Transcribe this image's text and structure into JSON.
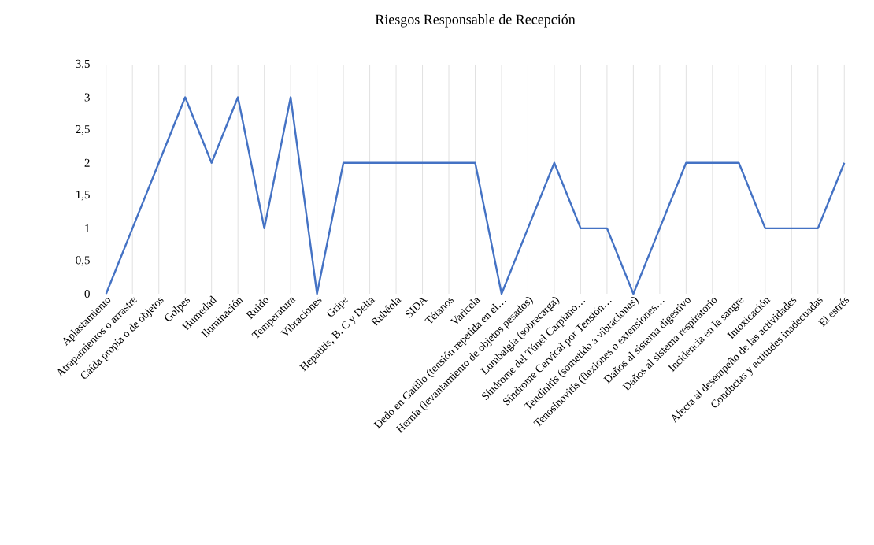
{
  "chart_data": {
    "type": "line",
    "title": "Riesgos Responsable de Recepción",
    "categories": [
      "Aplastamiento",
      "Atrapamientos o arrastre",
      "Caída propia o de objetos",
      "Golpes",
      "Humedad",
      "Iluminación",
      "Ruido",
      "Temperatura",
      "Vibraciones",
      "Gripe",
      "Hepatitis, B, C y Delta",
      "Rubéola",
      "SIDA",
      "Tétanos",
      "Varicela",
      "Dedo en Gatillo (tensión repetida en el…",
      "Hernia (levantamiento de objetos pesados)",
      "Lumbalgia (sobrecarga)",
      "Síndrome del Túnel Carpiano…",
      "Síndrome Cervical por Tensión…",
      "Tendinitis (sometido a vibraciones)",
      "Tenosinovitis (flexiones o extensiones…",
      "Daños al sistema digestivo",
      "Daños al sistema respiratorio",
      "Incidencia en la sangre",
      "Intoxicación",
      "Afecta al desempeño de las actividades",
      "Conductas y actitudes inadecuadas",
      "El estrés"
    ],
    "values": [
      0,
      1,
      2,
      3,
      2,
      3,
      1,
      3,
      0,
      2,
      2,
      2,
      2,
      2,
      2,
      0,
      1,
      2,
      1,
      1,
      0,
      1,
      2,
      2,
      2,
      1,
      1,
      1,
      2
    ],
    "color": "#4472c4",
    "ylim": [
      0,
      3.5
    ],
    "yticks": [
      {
        "value": 0,
        "label": "0"
      },
      {
        "value": 0.5,
        "label": "0,5"
      },
      {
        "value": 1,
        "label": "1"
      },
      {
        "value": 1.5,
        "label": "1,5"
      },
      {
        "value": 2,
        "label": "2"
      },
      {
        "value": 2.5,
        "label": "2,5"
      },
      {
        "value": 3,
        "label": "3"
      },
      {
        "value": 3.5,
        "label": "3,5"
      }
    ],
    "grid": "x",
    "marker": "none",
    "line_style": "solid"
  }
}
